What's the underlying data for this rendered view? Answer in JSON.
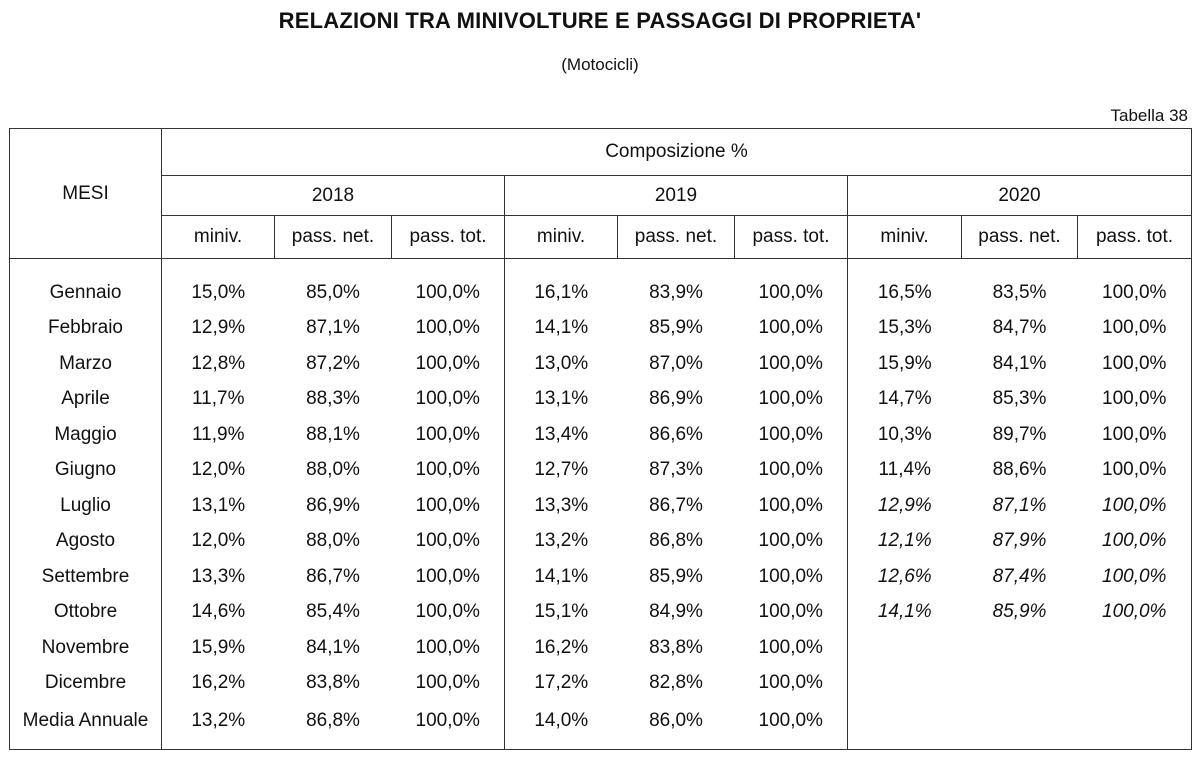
{
  "title": "RELAZIONI TRA MINIVOLTURE E PASSAGGI DI PROPRIETA'",
  "subtitle": "(Motocicli)",
  "table_id": "Tabella 38",
  "header": {
    "row_label": "MESI",
    "group_label": "Composizione %",
    "years": [
      "2018",
      "2019",
      "2020"
    ],
    "subcolumns": [
      "miniv.",
      "pass. net.",
      "pass. tot."
    ]
  },
  "rows": [
    {
      "label": "Gennaio",
      "values": [
        "15,0%",
        "85,0%",
        "100,0%",
        "16,1%",
        "83,9%",
        "100,0%",
        "16,5%",
        "83,5%",
        "100,0%"
      ]
    },
    {
      "label": "Febbraio",
      "values": [
        "12,9%",
        "87,1%",
        "100,0%",
        "14,1%",
        "85,9%",
        "100,0%",
        "15,3%",
        "84,7%",
        "100,0%"
      ]
    },
    {
      "label": "Marzo",
      "values": [
        "12,8%",
        "87,2%",
        "100,0%",
        "13,0%",
        "87,0%",
        "100,0%",
        "15,9%",
        "84,1%",
        "100,0%"
      ]
    },
    {
      "label": "Aprile",
      "values": [
        "11,7%",
        "88,3%",
        "100,0%",
        "13,1%",
        "86,9%",
        "100,0%",
        "14,7%",
        "85,3%",
        "100,0%"
      ]
    },
    {
      "label": "Maggio",
      "values": [
        "11,9%",
        "88,1%",
        "100,0%",
        "13,4%",
        "86,6%",
        "100,0%",
        "10,3%",
        "89,7%",
        "100,0%"
      ]
    },
    {
      "label": "Giugno",
      "values": [
        "12,0%",
        "88,0%",
        "100,0%",
        "12,7%",
        "87,3%",
        "100,0%",
        "11,4%",
        "88,6%",
        "100,0%"
      ]
    },
    {
      "label": "Luglio",
      "values": [
        "13,1%",
        "86,9%",
        "100,0%",
        "13,3%",
        "86,7%",
        "100,0%",
        "12,9%",
        "87,1%",
        "100,0%"
      ],
      "italic_2020": true
    },
    {
      "label": "Agosto",
      "values": [
        "12,0%",
        "88,0%",
        "100,0%",
        "13,2%",
        "86,8%",
        "100,0%",
        "12,1%",
        "87,9%",
        "100,0%"
      ],
      "italic_2020": true
    },
    {
      "label": "Settembre",
      "values": [
        "13,3%",
        "86,7%",
        "100,0%",
        "14,1%",
        "85,9%",
        "100,0%",
        "12,6%",
        "87,4%",
        "100,0%"
      ],
      "italic_2020": true
    },
    {
      "label": "Ottobre",
      "values": [
        "14,6%",
        "85,4%",
        "100,0%",
        "15,1%",
        "84,9%",
        "100,0%",
        "14,1%",
        "85,9%",
        "100,0%"
      ],
      "italic_2020": true
    },
    {
      "label": "Novembre",
      "values": [
        "15,9%",
        "84,1%",
        "100,0%",
        "16,2%",
        "83,8%",
        "100,0%",
        "",
        "",
        ""
      ]
    },
    {
      "label": "Dicembre",
      "values": [
        "16,2%",
        "83,8%",
        "100,0%",
        "17,2%",
        "82,8%",
        "100,0%",
        "",
        "",
        ""
      ]
    },
    {
      "label": "Media Annuale",
      "values": [
        "13,2%",
        "86,8%",
        "100,0%",
        "14,0%",
        "86,0%",
        "100,0%",
        "",
        "",
        ""
      ]
    }
  ]
}
